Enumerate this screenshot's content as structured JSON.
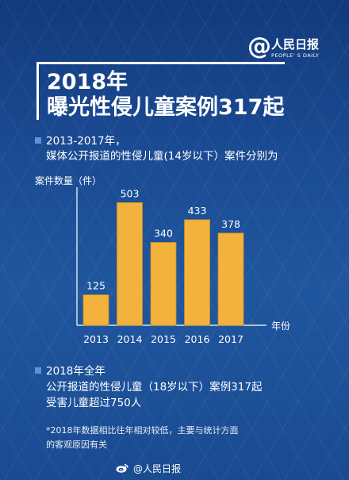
{
  "logo": {
    "at": "@",
    "name": "人民日报",
    "en": "PEOPLE' S DAILY"
  },
  "title": {
    "year_line": "2018年",
    "main_line": "曝光性侵儿童案例317起"
  },
  "section1": {
    "line1": "2013-2017年，",
    "line2": "媒体公开报道的性侵儿童(14岁以下）案件分别为"
  },
  "chart_data": {
    "type": "bar",
    "categories": [
      "2013",
      "2014",
      "2015",
      "2016",
      "2017"
    ],
    "values": [
      125,
      503,
      340,
      433,
      378
    ],
    "data_labels": [
      "125",
      "503",
      "340",
      "433",
      "378"
    ],
    "ylabel": "案件数量（件）",
    "xlabel": "年份",
    "ylim": [
      0,
      540
    ],
    "grid": false,
    "legend": "none",
    "bar_color": "#f2b33c",
    "axis_color": "#ffffff"
  },
  "section2": {
    "line1": "2018年全年",
    "line2": "公开报道的性侵儿童（18岁以下）案例317起",
    "line3": "受害儿童超过750人"
  },
  "note": {
    "line1": "*2018年数据相比往年相对较低，主要与统计方面",
    "line2": "的客观原因有关"
  },
  "footer": {
    "icon": "weibo-icon",
    "text": "@人民日报"
  },
  "colors": {
    "background": "#173f84",
    "accent_square": "#5f8fd6",
    "bar": "#f2b33c"
  }
}
